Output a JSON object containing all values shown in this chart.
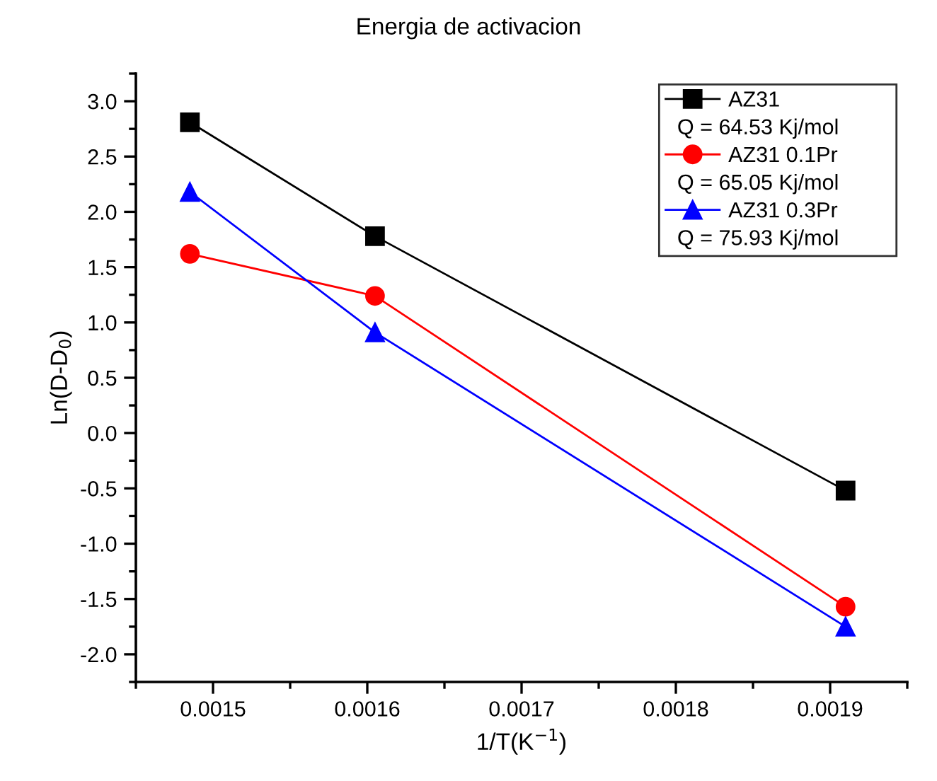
{
  "chart_data": {
    "type": "line",
    "title": "Energia de activacion",
    "xlabel": "1/T(K$^{−1}$)",
    "ylabel": "Ln(D-D$_{0}$)",
    "x": [
      0.001485,
      0.001605,
      0.00191
    ],
    "series": [
      {
        "name": "AZ31",
        "color": "#000000",
        "marker": "square",
        "values": [
          2.81,
          1.78,
          -0.52
        ]
      },
      {
        "name": "AZ31 0.1Pr",
        "color": "#ff0000",
        "marker": "circle",
        "values": [
          1.62,
          1.24,
          -1.57
        ]
      },
      {
        "name": "AZ31 0.3Pr",
        "color": "#0000ff",
        "marker": "triangle",
        "values": [
          2.18,
          0.91,
          -1.75
        ]
      }
    ],
    "annotations": [
      "Q = 64.53 Kj/mol",
      "Q = 65.05 Kj/mol",
      "Q = 75.93 Kj/mol"
    ],
    "xlim": [
      0.00145,
      0.00195
    ],
    "xticks": [
      {
        "value": 0.0015,
        "label": "0.0015"
      },
      {
        "value": 0.0016,
        "label": "0.0016"
      },
      {
        "value": 0.0017,
        "label": "0.0017"
      },
      {
        "value": 0.0018,
        "label": "0.0018"
      },
      {
        "value": 0.0019,
        "label": "0.0019"
      }
    ],
    "ylim": [
      -2.25,
      3.25
    ],
    "yticks": [
      {
        "value": -2.0,
        "label": "-2.0"
      },
      {
        "value": -1.5,
        "label": "-1.5"
      },
      {
        "value": -1.0,
        "label": "-1.0"
      },
      {
        "value": -0.5,
        "label": "-0.5"
      },
      {
        "value": 0.0,
        "label": "0.0"
      },
      {
        "value": 0.5,
        "label": "0.5"
      },
      {
        "value": 1.0,
        "label": "1.0"
      },
      {
        "value": 1.5,
        "label": "1.5"
      },
      {
        "value": 2.0,
        "label": "2.0"
      },
      {
        "value": 2.5,
        "label": "2.5"
      },
      {
        "value": 3.0,
        "label": "3.0"
      }
    ],
    "grid": false,
    "legend": "top right",
    "line_style": "solid"
  }
}
